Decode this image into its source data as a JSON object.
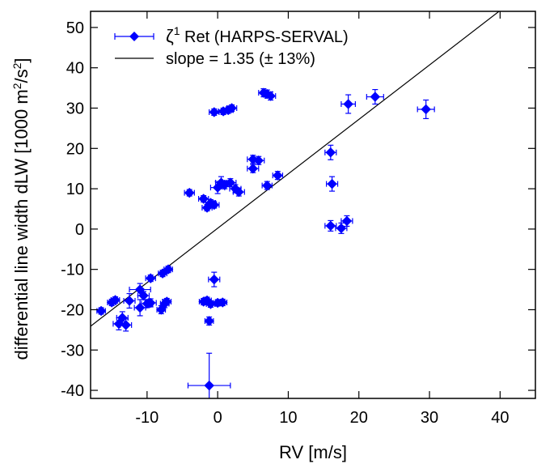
{
  "chart_data": {
    "type": "scatter",
    "xlabel": "RV [m/s]",
    "ylabel": "differential line width dLW [1000 m²/s²]",
    "ylabel_parts": {
      "before": "differential line width dLW [1000 m",
      "sup1": "2",
      "mid": "/s",
      "sup2": "2",
      "after": "]"
    },
    "xlim": [
      -18,
      45
    ],
    "ylim": [
      -42,
      54
    ],
    "xticks": [
      -10,
      0,
      10,
      20,
      30,
      40
    ],
    "yticks": [
      -40,
      -30,
      -20,
      -10,
      0,
      10,
      20,
      30,
      40,
      50
    ],
    "grid": false,
    "legend_placement": "top-left",
    "series": [
      {
        "name": "ζ¹ Ret (HARPS-SERVAL)",
        "name_parts": {
          "symbol": "ζ",
          "sup": "1",
          "rest": " Ret (HARPS-SERVAL)"
        },
        "color": "#0000ff",
        "marker": "diamond",
        "points": [
          {
            "x": -16.5,
            "y": -20.3,
            "xerr": 0.6,
            "yerr": 0.8
          },
          {
            "x": -15.0,
            "y": -18.2,
            "xerr": 0.6,
            "yerr": 0.8
          },
          {
            "x": -14.5,
            "y": -17.6,
            "xerr": 0.6,
            "yerr": 0.8
          },
          {
            "x": -14.0,
            "y": -23.5,
            "xerr": 0.8,
            "yerr": 1.5
          },
          {
            "x": -13.5,
            "y": -22.0,
            "xerr": 0.8,
            "yerr": 1.5
          },
          {
            "x": -13.0,
            "y": -23.8,
            "xerr": 0.8,
            "yerr": 1.5
          },
          {
            "x": -12.5,
            "y": -17.8,
            "xerr": 0.8,
            "yerr": 1.8
          },
          {
            "x": -11.0,
            "y": -15.0,
            "xerr": 1.5,
            "yerr": 1.5
          },
          {
            "x": -11.0,
            "y": -19.5,
            "xerr": 0.8,
            "yerr": 2.0
          },
          {
            "x": -10.5,
            "y": -16.5,
            "xerr": 0.8,
            "yerr": 1.0
          },
          {
            "x": -10.0,
            "y": -18.5,
            "xerr": 0.8,
            "yerr": 1.0
          },
          {
            "x": -9.5,
            "y": -18.3,
            "xerr": 0.8,
            "yerr": 1.0
          },
          {
            "x": -9.5,
            "y": -12.2,
            "xerr": 0.7,
            "yerr": 0.8
          },
          {
            "x": -8.0,
            "y": -20.0,
            "xerr": 0.6,
            "yerr": 1.0
          },
          {
            "x": -7.8,
            "y": -11.0,
            "xerr": 0.6,
            "yerr": 0.8
          },
          {
            "x": -7.5,
            "y": -18.5,
            "xerr": 0.6,
            "yerr": 1.0
          },
          {
            "x": -7.2,
            "y": -18.0,
            "xerr": 0.6,
            "yerr": 0.8
          },
          {
            "x": -7.0,
            "y": -10.0,
            "xerr": 0.6,
            "yerr": 0.8
          },
          {
            "x": -4.0,
            "y": 9.0,
            "xerr": 0.7,
            "yerr": 0.8
          },
          {
            "x": -2.0,
            "y": 7.5,
            "xerr": 0.7,
            "yerr": 0.8
          },
          {
            "x": -1.5,
            "y": 5.3,
            "xerr": 0.7,
            "yerr": 0.8
          },
          {
            "x": -1.0,
            "y": 6.5,
            "xerr": 0.7,
            "yerr": 0.8
          },
          {
            "x": -0.5,
            "y": 6.0,
            "xerr": 0.7,
            "yerr": 0.8
          },
          {
            "x": -2.0,
            "y": -18.0,
            "xerr": 0.6,
            "yerr": 0.8
          },
          {
            "x": -1.5,
            "y": -17.7,
            "xerr": 0.6,
            "yerr": 0.8
          },
          {
            "x": -1.0,
            "y": -18.6,
            "xerr": 0.6,
            "yerr": 0.8
          },
          {
            "x": -1.2,
            "y": -22.8,
            "xerr": 0.6,
            "yerr": 1.0
          },
          {
            "x": -0.5,
            "y": -12.5,
            "xerr": 0.8,
            "yerr": 1.8
          },
          {
            "x": 0.0,
            "y": -18.3,
            "xerr": 0.6,
            "yerr": 0.8
          },
          {
            "x": 0.7,
            "y": -18.2,
            "xerr": 0.6,
            "yerr": 0.8
          },
          {
            "x": -1.2,
            "y": -38.8,
            "xerr": 3.0,
            "yerr": 8.0
          },
          {
            "x": -0.5,
            "y": 29.0,
            "xerr": 0.7,
            "yerr": 0.8
          },
          {
            "x": 0.0,
            "y": 10.3,
            "xerr": 1.0,
            "yerr": 1.5
          },
          {
            "x": 0.5,
            "y": 11.5,
            "xerr": 0.8,
            "yerr": 1.5
          },
          {
            "x": 1.0,
            "y": 11.0,
            "xerr": 0.8,
            "yerr": 1.0
          },
          {
            "x": 0.8,
            "y": 29.2,
            "xerr": 0.7,
            "yerr": 0.8
          },
          {
            "x": 1.5,
            "y": 29.5,
            "xerr": 0.7,
            "yerr": 0.8
          },
          {
            "x": 1.8,
            "y": 11.5,
            "xerr": 0.8,
            "yerr": 1.0
          },
          {
            "x": 2.0,
            "y": 30.0,
            "xerr": 0.7,
            "yerr": 0.8
          },
          {
            "x": 2.5,
            "y": 10.0,
            "xerr": 0.8,
            "yerr": 1.0
          },
          {
            "x": 3.0,
            "y": 9.2,
            "xerr": 0.8,
            "yerr": 1.0
          },
          {
            "x": 5.0,
            "y": 17.3,
            "xerr": 0.8,
            "yerr": 1.0
          },
          {
            "x": 5.0,
            "y": 15.0,
            "xerr": 0.8,
            "yerr": 1.0
          },
          {
            "x": 5.8,
            "y": 17.0,
            "xerr": 0.8,
            "yerr": 1.0
          },
          {
            "x": 6.5,
            "y": 33.8,
            "xerr": 0.7,
            "yerr": 1.0
          },
          {
            "x": 7.0,
            "y": 33.5,
            "xerr": 0.7,
            "yerr": 1.0
          },
          {
            "x": 7.5,
            "y": 33.0,
            "xerr": 0.7,
            "yerr": 1.0
          },
          {
            "x": 7.0,
            "y": 10.8,
            "xerr": 0.7,
            "yerr": 1.0
          },
          {
            "x": 8.5,
            "y": 13.3,
            "xerr": 0.7,
            "yerr": 1.0
          },
          {
            "x": 16.0,
            "y": 19.0,
            "xerr": 0.8,
            "yerr": 1.8
          },
          {
            "x": 16.2,
            "y": 11.2,
            "xerr": 0.8,
            "yerr": 1.8
          },
          {
            "x": 16.0,
            "y": 0.8,
            "xerr": 0.8,
            "yerr": 1.3
          },
          {
            "x": 17.5,
            "y": 0.2,
            "xerr": 0.8,
            "yerr": 1.3
          },
          {
            "x": 18.3,
            "y": 2.0,
            "xerr": 0.8,
            "yerr": 1.3
          },
          {
            "x": 18.5,
            "y": 31.0,
            "xerr": 1.0,
            "yerr": 2.3
          },
          {
            "x": 22.3,
            "y": 32.8,
            "xerr": 1.2,
            "yerr": 1.8
          },
          {
            "x": 29.5,
            "y": 29.7,
            "xerr": 1.2,
            "yerr": 2.3
          }
        ]
      }
    ],
    "fit_line": {
      "name": "slope =  1.35 (± 13%)",
      "slope_per_1000": 1.35,
      "intercept": 0.2,
      "color": "#000000",
      "x_range": [
        -18,
        45
      ]
    }
  }
}
